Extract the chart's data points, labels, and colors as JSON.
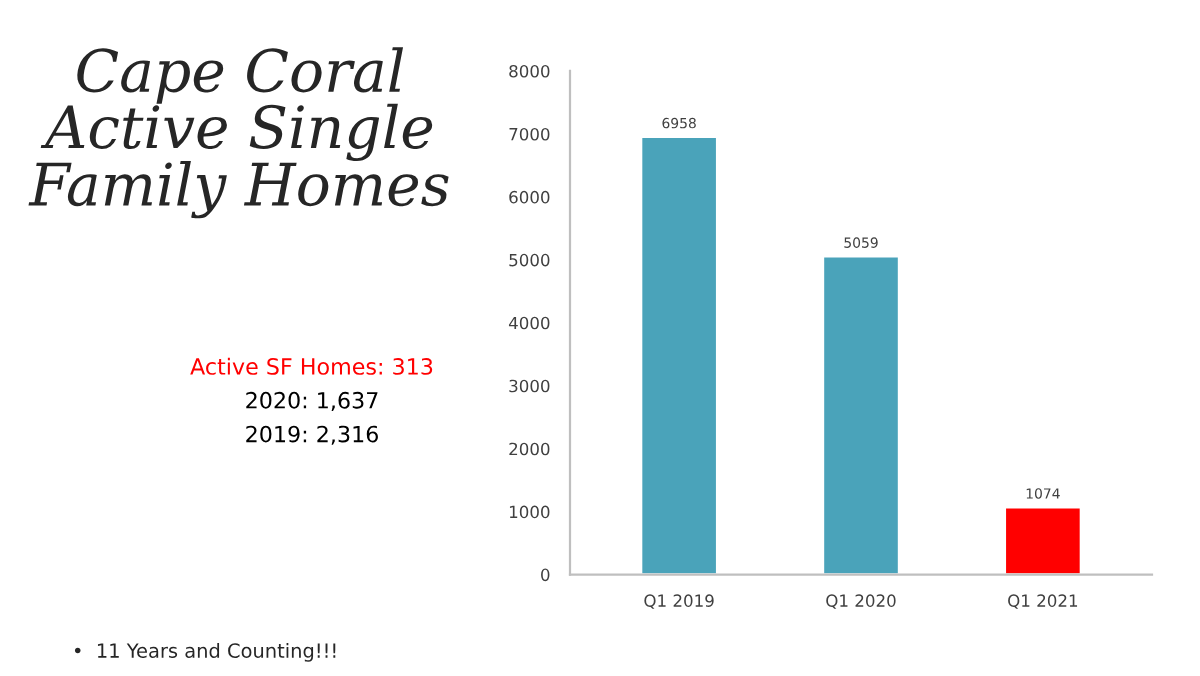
{
  "chart_data": {
    "type": "bar",
    "title": "Cape Coral\nActive Single\nFamily Homes",
    "categories": [
      "Q1 2019",
      "Q1 2020",
      "Q1 2021"
    ],
    "values": [
      6958,
      5059,
      1074
    ],
    "colors": [
      "#4aa3ba",
      "#4aa3ba",
      "#ff0000"
    ],
    "ylim": [
      0,
      8000
    ],
    "yticks": [
      0,
      1000,
      2000,
      3000,
      4000,
      5000,
      6000,
      7000,
      8000
    ],
    "grid": false,
    "data_labels": true,
    "annotations": [
      "Active SF Homes: 313",
      "2020: 1,637",
      "2019: 2,316",
      "•  11 Years and Counting!!!"
    ]
  }
}
